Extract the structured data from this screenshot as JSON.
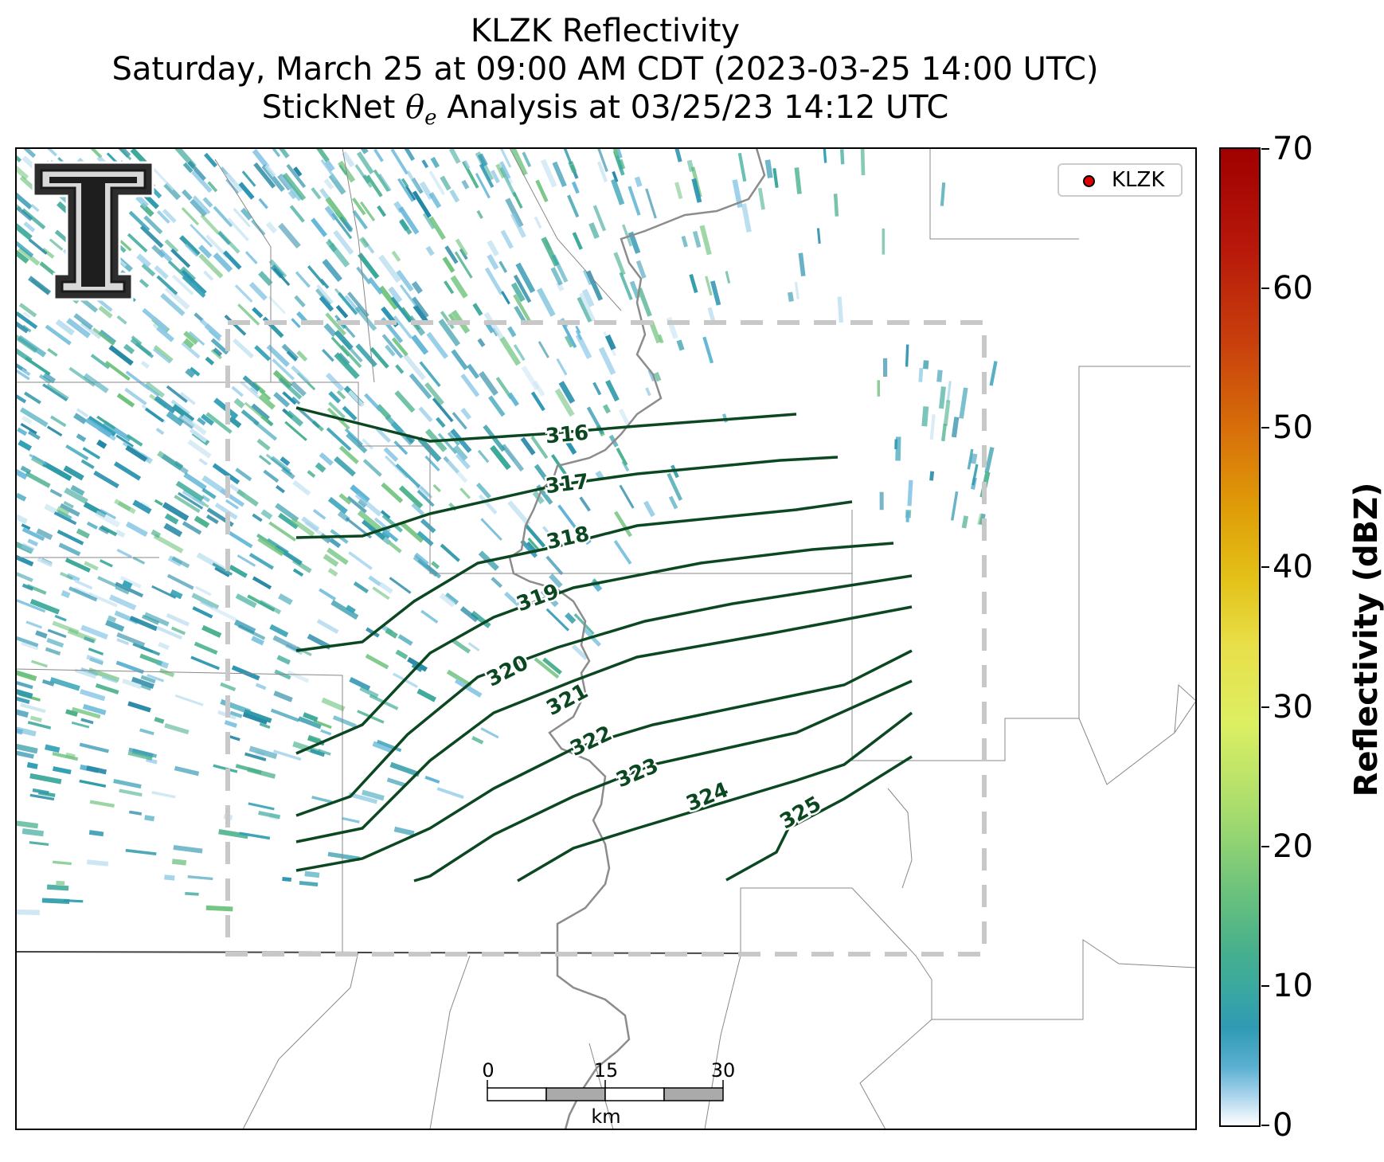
{
  "title": {
    "line1": "KLZK Reflectivity",
    "line2": "Saturday, March 25 at 09:00 AM CDT (2023-03-25 14:00 UTC)",
    "line3_pre": "StickNet ",
    "line3_theta": "θ",
    "line3_sub": "e",
    "line3_post": " Analysis at 03/25/23 14:12 UTC"
  },
  "legend": {
    "label": "KLZK",
    "marker_color": "#e00000"
  },
  "colorbar": {
    "label": "Reflectivity (dBZ)",
    "ticks": [
      "0",
      "10",
      "20",
      "30",
      "40",
      "50",
      "60",
      "70"
    ],
    "range": [
      0,
      70
    ]
  },
  "contour_color": "#0b4720",
  "contours": [
    {
      "label": "316"
    },
    {
      "label": "317"
    },
    {
      "label": "318"
    },
    {
      "label": "319"
    },
    {
      "label": "320"
    },
    {
      "label": "321"
    },
    {
      "label": "322"
    },
    {
      "label": "323"
    },
    {
      "label": "324"
    },
    {
      "label": "325"
    }
  ],
  "scale_bar": {
    "ticks": [
      "0",
      "15",
      "30"
    ],
    "unit": "km"
  },
  "logo": {
    "name": "Texas Tech double-T logo"
  }
}
